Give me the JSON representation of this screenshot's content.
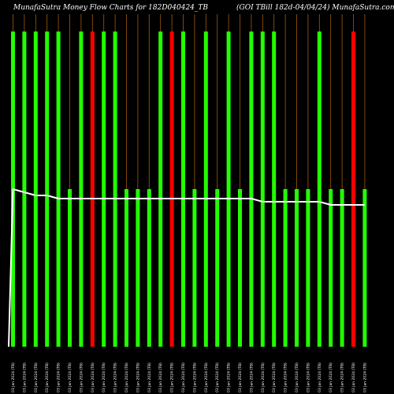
{
  "chart_data": {
    "type": "bar",
    "title": "MunafaSutra Money Flow Charts for 182D040424_TB",
    "subtitle": "(GOI TBill 182d-04/04/24) MunafaSutra.com",
    "categories": [
      "03 Jan 2024 (TB)",
      "03 Jan 2024 (TB)",
      "03 Jan 2024 (TB)",
      "03 Jan 2024 (TB)",
      "03 Jan 2024 (TB)",
      "03 Jan 2024 (TB)",
      "03 Jan 2024 (TB)",
      "03 Jan 2024 (TB)",
      "03 Jan 2024 (TB)",
      "03 Jan 2024 (TB)",
      "03 Jan 2024 (TB)",
      "03 Jan 2024 (TB)",
      "03 Jan 2024 (TB)",
      "03 Jan 2024 (TB)",
      "03 Jan 2024 (TB)",
      "03 Jan 2024 (TB)",
      "03 Jan 2024 (TB)",
      "03 Jan 2024 (TB)",
      "03 Jan 2024 (TB)",
      "03 Jan 2024 (TB)",
      "03 Jan 2024 (TB)",
      "03 Jan 2024 (TB)",
      "03 Jan 2024 (TB)",
      "03 Jan 2024 (TB)",
      "03 Jan 2024 (TB)",
      "03 Jan 2024 (TB)",
      "03 Jan 2024 (TB)",
      "03 Jan 2024 (TB)",
      "03 Jan 2024 (TB)",
      "03 Jan 2024 (TB)",
      "03 Jan 2024 (TB)",
      "03 Jan 2024 (TB)"
    ],
    "bar_values": [
      100,
      100,
      100,
      100,
      100,
      50,
      100,
      100,
      100,
      100,
      50,
      50,
      50,
      100,
      100,
      100,
      50,
      100,
      50,
      100,
      50,
      100,
      100,
      100,
      50,
      50,
      50,
      100,
      50,
      50,
      100,
      50
    ],
    "bar_colors": [
      "green",
      "green",
      "green",
      "green",
      "green",
      "green",
      "green",
      "red",
      "green",
      "green",
      "green",
      "green",
      "green",
      "green",
      "red",
      "green",
      "green",
      "green",
      "green",
      "green",
      "green",
      "green",
      "green",
      "green",
      "green",
      "green",
      "green",
      "green",
      "green",
      "green",
      "red",
      "green"
    ],
    "line_values": [
      50,
      49,
      48,
      48,
      47,
      47,
      47,
      47,
      47,
      47,
      47,
      47,
      47,
      47,
      47,
      47,
      47,
      47,
      47,
      47,
      47,
      47,
      46,
      46,
      46,
      46,
      46,
      46,
      45,
      45,
      45,
      45
    ],
    "line_start": 0,
    "ylim": [
      0,
      100
    ],
    "grid": false,
    "legend": "none",
    "colors": {
      "background": "#000000",
      "green": "#22ff00",
      "red": "#ff0000",
      "line": "#ffffff",
      "vline": "#a05a0c",
      "text": "#ffffff"
    }
  }
}
